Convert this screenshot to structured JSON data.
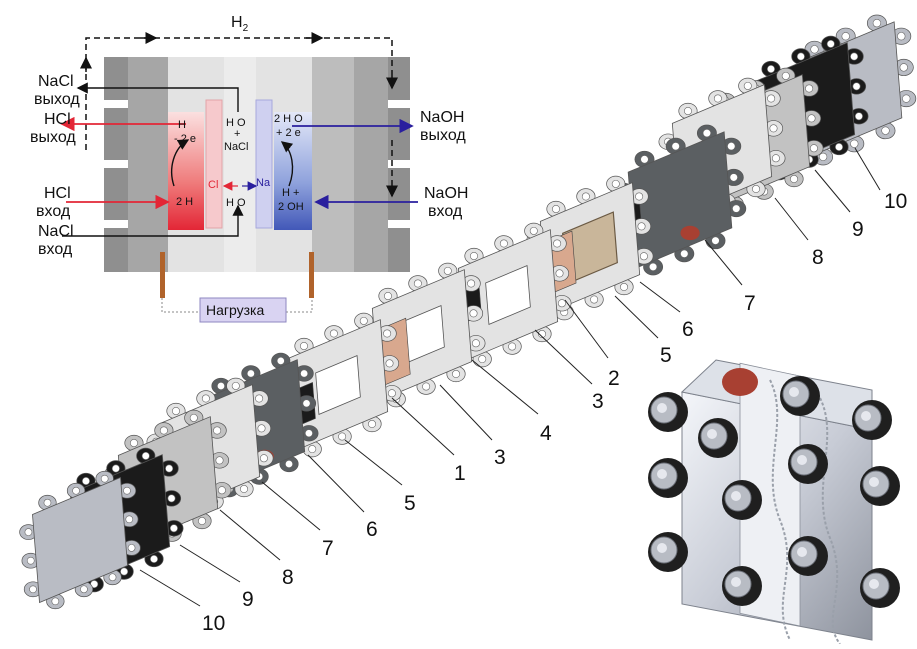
{
  "schematic": {
    "h2": "H",
    "h2_sub": "2",
    "nacl_out": [
      "NaCl",
      "выход"
    ],
    "hcl_out": [
      "HCl",
      "выход"
    ],
    "hcl_in": [
      "HCl",
      "вход"
    ],
    "nacl_in": [
      "NaCl",
      "вход"
    ],
    "naoh_out": [
      "NaOH",
      "выход"
    ],
    "naoh_in": [
      "NaOH",
      "вход"
    ],
    "anode_reaction": [
      "H",
      "- 2 e",
      "2 H"
    ],
    "cl_ion": "Cl",
    "na_ion": "Na",
    "center_top": [
      "H O",
      "+",
      "NaCl"
    ],
    "center_bottom": "H O",
    "cathode_reaction": [
      "2 H O",
      "+ 2 e",
      "H +",
      "2 OH"
    ],
    "load": "Нагрузка"
  },
  "part_numbers": {
    "right_stack": [
      "10",
      "9",
      "8",
      "7",
      "6",
      "5",
      "2",
      "3",
      "4"
    ],
    "left_stack": [
      "3",
      "1",
      "5",
      "6",
      "7",
      "8",
      "9",
      "10"
    ]
  },
  "colors": {
    "acid": "#e32636",
    "base": "#2a1f9e",
    "electrode": "#b0632b",
    "membrane_red": "#a84032",
    "copper_sheet": "#d8a88e",
    "plate_light": "#e3e3e3",
    "plate_mid": "#c2c2c2",
    "plate_dark": "#5b5f62",
    "gasket_black": "#1b1b1b",
    "load_box": "#d9d3f2"
  }
}
